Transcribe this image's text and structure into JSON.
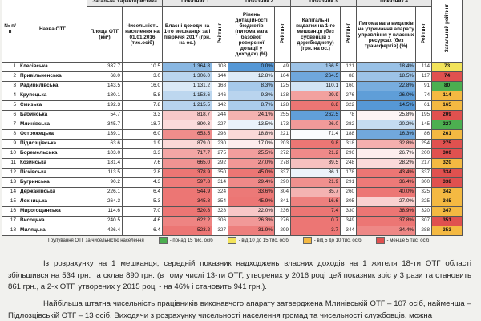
{
  "table": {
    "header_groups": [
      "Загальна характеристика",
      "Показник 1",
      "Показник 2",
      "Показник 3",
      "Показник 4"
    ],
    "columns": [
      "№ п/п",
      "Назва ОТГ",
      "Площа ОТГ (км²)",
      "Чисельність населення на 01.01.2016 (тис.осіб)",
      "Власні доходи на 1-го мешканця за І півріччя 2017 (грн. на ос.)",
      "Рейтинг",
      "Рівень дотаційності бюджетів (питома вага базової/ реверсної дотації у доходах) (%)",
      "Рейтинг",
      "Капітальні видатки на 1-го мешканця (без субвенцій з держбюджету) (грн. на ос.)",
      "Рейтинг",
      "Питома вага видатків на утримання апарату управління у власних ресурсах (без трансфертів) (%)",
      "Рейтинг",
      "Загальний рейтинг"
    ],
    "rows": [
      [
        "1",
        "Клесівська",
        "337.7",
        "10.5",
        "1 364.8",
        "108",
        "0.0%",
        "49",
        "166.5",
        "121",
        "18.4%",
        "114",
        "73"
      ],
      [
        "2",
        "Привільненська",
        "68.0",
        "3.0",
        "1 306.0",
        "144",
        "12.8%",
        "164",
        "264.5",
        "88",
        "18.5%",
        "117",
        "74"
      ],
      [
        "3",
        "Радивилівська",
        "143.5",
        "16.0",
        "1 131.2",
        "168",
        "8.3%",
        "125",
        "110.1",
        "160",
        "22.8%",
        "91",
        "80"
      ],
      [
        "4",
        "Крупецька",
        "180.1",
        "5.8",
        "1 153.6",
        "146",
        "9.3%",
        "138",
        "29.9",
        "276",
        "26.0%",
        "74",
        "114"
      ],
      [
        "5",
        "Смизька",
        "192.3",
        "7.8",
        "1 215.5",
        "142",
        "8.7%",
        "128",
        "8.8",
        "322",
        "14.5%",
        "61",
        "165"
      ],
      [
        "6",
        "Бабинська",
        "54.7",
        "3.3",
        "818.7",
        "244",
        "24.1%",
        "255",
        "262.5",
        "78",
        "25.8%",
        "195",
        "209"
      ],
      [
        "7",
        "Млинівська",
        "345.7",
        "18.7",
        "890.3",
        "227",
        "13.5%",
        "173",
        "26.0",
        "282",
        "20.2%",
        "145",
        "227"
      ],
      [
        "8",
        "Острожецька",
        "139.1",
        "6.0",
        "653.5",
        "298",
        "18.8%",
        "221",
        "71.4",
        "188",
        "16.3%",
        "86",
        "261"
      ],
      [
        "9",
        "Підлозцівська",
        "63.6",
        "1.9",
        "879.0",
        "230",
        "17.0%",
        "203",
        "9.8",
        "318",
        "32.8%",
        "254",
        "275"
      ],
      [
        "10",
        "Боремельська",
        "103.0",
        "3.3",
        "717.7",
        "275",
        "25.5%",
        "272",
        "21.2",
        "296",
        "26.7%",
        "200",
        "300"
      ],
      [
        "11",
        "Козинська",
        "181.4",
        "7.6",
        "665.0",
        "292",
        "27.0%",
        "278",
        "39.5",
        "248",
        "28.2%",
        "217",
        "320"
      ],
      [
        "12",
        "Пісківська",
        "113.5",
        "2.8",
        "378.9",
        "350",
        "45.0%",
        "337",
        "86.1",
        "178",
        "43.4%",
        "337",
        "334"
      ],
      [
        "13",
        "Бугринська",
        "90.2",
        "4.3",
        "597.8",
        "314",
        "29.4%",
        "290",
        "21.9",
        "291",
        "36.4%",
        "300",
        "338"
      ],
      [
        "14",
        "Держанівська",
        "226.1",
        "6.4",
        "544.9",
        "324",
        "33.6%",
        "304",
        "35.7",
        "260",
        "40.0%",
        "325",
        "342"
      ],
      [
        "15",
        "Локницька",
        "264.3",
        "5.3",
        "345.8",
        "354",
        "45.9%",
        "341",
        "16.6",
        "305",
        "27.0%",
        "225",
        "345"
      ],
      [
        "16",
        "Мирогощанська",
        "114.6",
        "7.0",
        "520.8",
        "328",
        "22.0%",
        "236",
        "7.4",
        "330",
        "38.9%",
        "320",
        "347"
      ],
      [
        "17",
        "Висоцька",
        "240.5",
        "4.6",
        "622.2",
        "306",
        "26.3%",
        "276",
        "0.7",
        "349",
        "37.8%",
        "307",
        "351"
      ],
      [
        "18",
        "Миляцька",
        "426.4",
        "6.4",
        "523.2",
        "327",
        "31.9%",
        "299",
        "3.7",
        "344",
        "34.4%",
        "288",
        "353"
      ]
    ],
    "total_colors": [
      "#f2e35a",
      "#e0514f",
      "#4caf50",
      "#f4b942",
      "#f4b942",
      "#e0514f",
      "#4caf50",
      "#f4b942",
      "#e0514f",
      "#e0514f",
      "#f4b942",
      "#e0514f",
      "#e0514f",
      "#f4b942",
      "#f4b942",
      "#f4b942",
      "#e0514f",
      "#f4b942"
    ]
  },
  "legend": {
    "title": "Групування ОТГ за чисельністю населення",
    "items": [
      {
        "label": "- понад 15 тис. осіб",
        "color": "#4caf50"
      },
      {
        "label": "- від 10 до 15 тис. осіб",
        "color": "#f2e35a"
      },
      {
        "label": "- від 5 до 10 тис. осіб",
        "color": "#f4b942"
      },
      {
        "label": "- менше 5 тис. осіб",
        "color": "#e0514f"
      }
    ]
  },
  "paragraphs": [
    "Із розрахунку на 1 мешканця, середній показник надходжень власних доходів на 1 жителя 18-ти ОТГ області збільшився на 534 грн. та склав 890 грн. (в тому числі 13-ти ОТГ, утворених у 2016 році цей показник зріс у 3 рази та становить 861 грн., а 2-х ОТГ, утворених у 2015 році - на 46% і становить 941 грн.).",
    "Найбільша штатна чисельність працівників виконавчого апарату затверджена Млинівській ОТГ – 107 осіб, найменша – Підлозцівській ОТГ – 13 осіб. Виходячи з розрахунку чисельності населення громад та чисельності службовців, можна"
  ]
}
